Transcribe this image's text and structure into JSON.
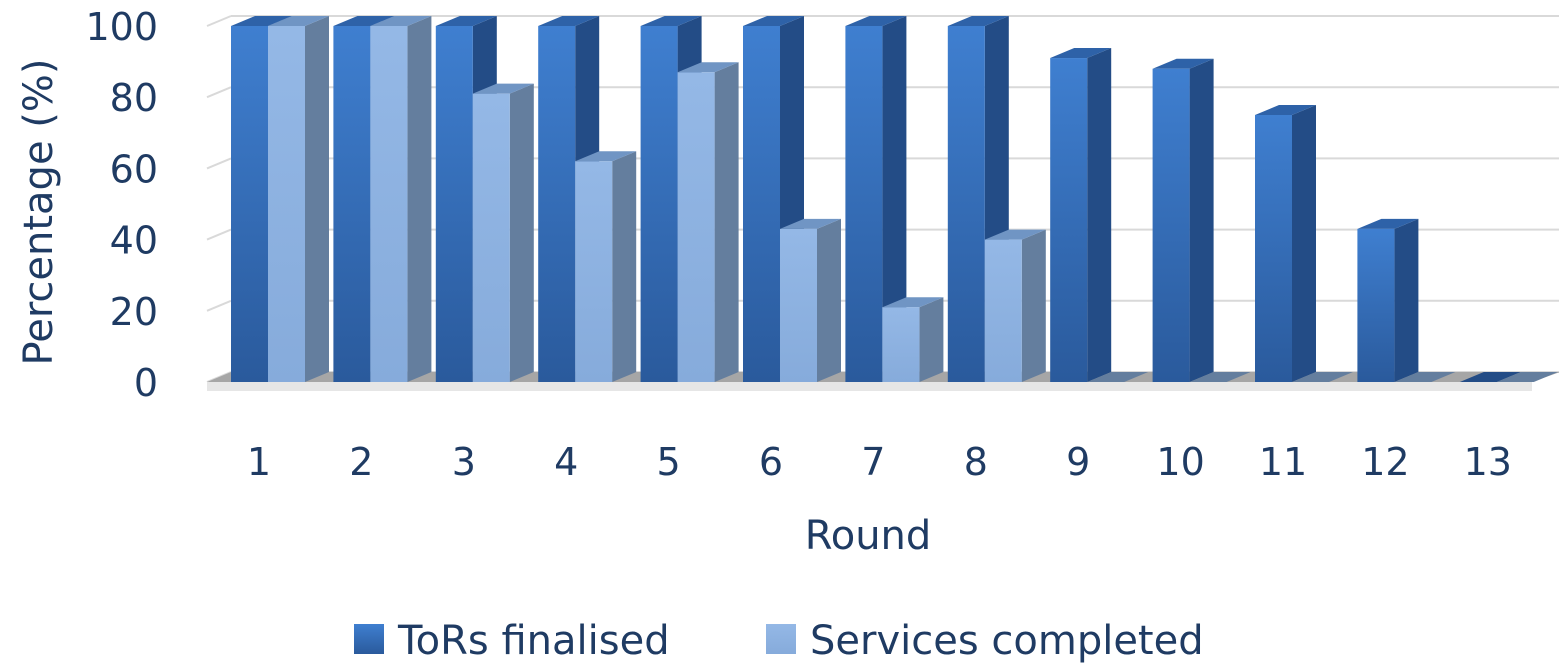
{
  "chart_data": {
    "type": "bar",
    "style": "3d-clustered-column",
    "categories": [
      "1",
      "2",
      "3",
      "4",
      "5",
      "6",
      "7",
      "8",
      "9",
      "10",
      "11",
      "12",
      "13"
    ],
    "series": [
      {
        "name": "ToRs finalised",
        "color": "#3b78c8",
        "values": [
          100,
          100,
          100,
          100,
          100,
          100,
          100,
          100,
          91,
          88,
          75,
          43,
          0
        ]
      },
      {
        "name": "Services completed",
        "color": "#8fb4e3",
        "values": [
          100,
          100,
          81,
          62,
          87,
          43,
          21,
          40,
          0,
          0,
          0,
          0,
          0
        ]
      }
    ],
    "xlabel": "Round",
    "ylabel": "Percentage (%)",
    "ylim": [
      0,
      100
    ],
    "yticks": [
      "0",
      "20",
      "40",
      "60",
      "80",
      "100"
    ],
    "grid": true,
    "legend_position": "bottom"
  }
}
